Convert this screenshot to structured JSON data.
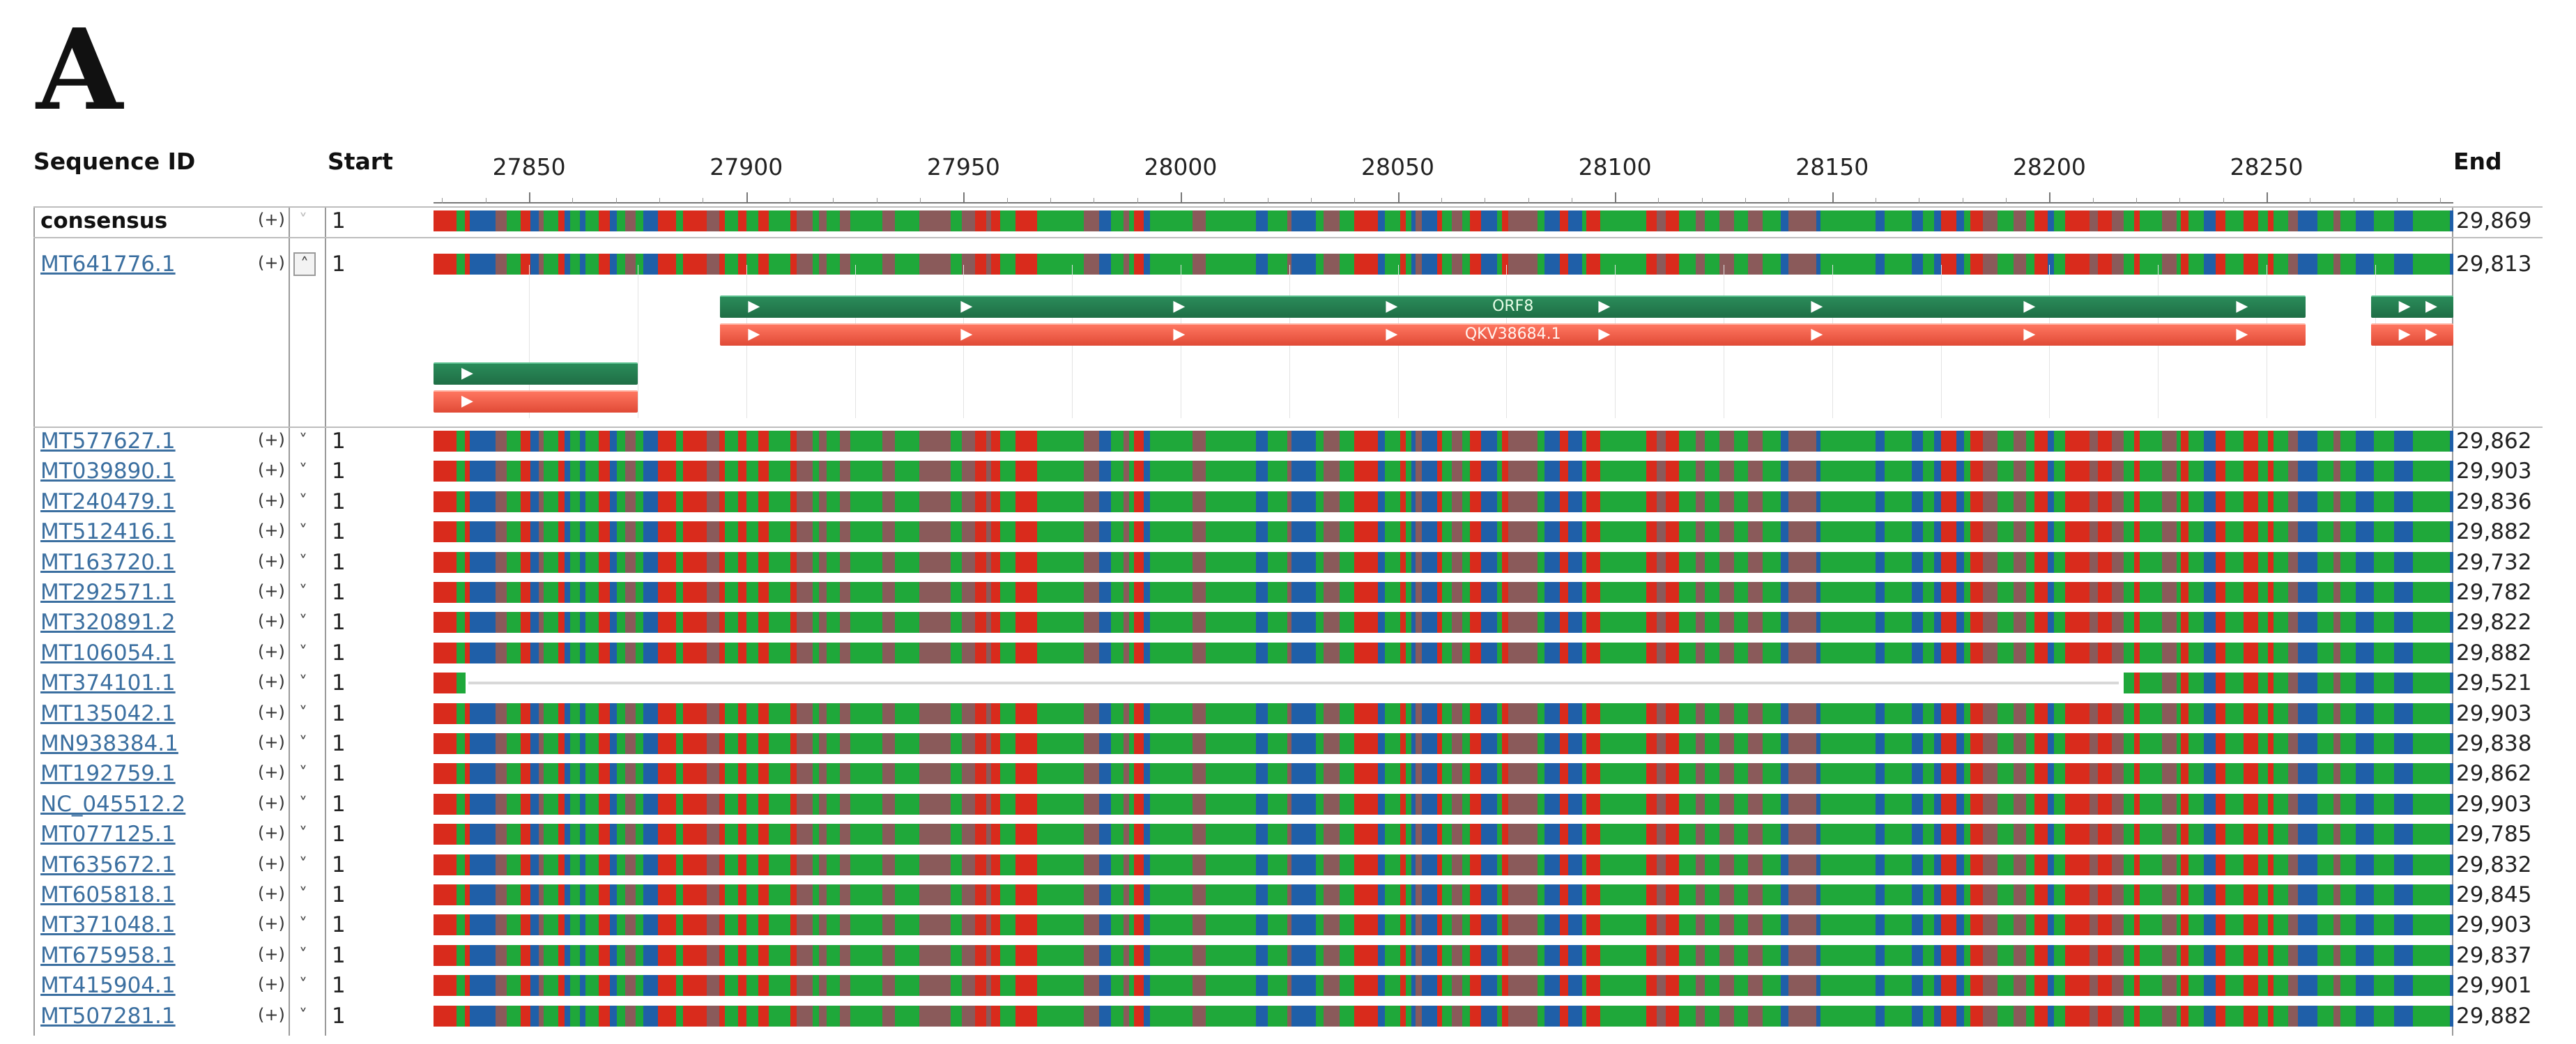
{
  "panel_label": "A",
  "headers": {
    "sequence_id": "Sequence ID",
    "start": "Start",
    "end": "End"
  },
  "ruler": {
    "tick_labels": [
      "27850",
      "27900",
      "27950",
      "28000",
      "28050",
      "28100",
      "28150",
      "28200",
      "28250"
    ],
    "range": [
      27828,
      28293
    ]
  },
  "colors": {
    "A": "#d92b1c",
    "G": "#1fa83a",
    "C": "#1f5fa8",
    "T": "#8a5a5a",
    "feature_green": "#1f6e45",
    "feature_red": "#e04a36",
    "link": "#3b6fa0"
  },
  "consensus": {
    "id": "consensus",
    "strand": "(+)",
    "start": "1",
    "end": "29,869"
  },
  "expanded": {
    "id": "MT641776.1",
    "strand": "(+)",
    "start": "1",
    "end": "29,813",
    "features": [
      {
        "name": "ORF8",
        "type": "gene",
        "color": "green",
        "from": 27894,
        "to": 28259
      },
      {
        "name": "QKV38684.1",
        "type": "CDS",
        "color": "red",
        "from": 27894,
        "to": 28259
      },
      {
        "name": "",
        "type": "gene",
        "color": "green",
        "from": 28274,
        "to": 28293
      },
      {
        "name": "",
        "type": "CDS",
        "color": "red",
        "from": 28274,
        "to": 28293
      },
      {
        "name": "",
        "type": "gene",
        "color": "green",
        "from": 27828,
        "to": 27875
      },
      {
        "name": "",
        "type": "CDS",
        "color": "red",
        "from": 27828,
        "to": 27875
      }
    ]
  },
  "sequences": [
    {
      "id": "MT577627.1",
      "strand": "(+)",
      "start": "1",
      "end": "29,862"
    },
    {
      "id": "MT039890.1",
      "strand": "(+)",
      "start": "1",
      "end": "29,903"
    },
    {
      "id": "MT240479.1",
      "strand": "(+)",
      "start": "1",
      "end": "29,836"
    },
    {
      "id": "MT512416.1",
      "strand": "(+)",
      "start": "1",
      "end": "29,882"
    },
    {
      "id": "MT163720.1",
      "strand": "(+)",
      "start": "1",
      "end": "29,732"
    },
    {
      "id": "MT292571.1",
      "strand": "(+)",
      "start": "1",
      "end": "29,782"
    },
    {
      "id": "MT320891.2",
      "strand": "(+)",
      "start": "1",
      "end": "29,822"
    },
    {
      "id": "MT106054.1",
      "strand": "(+)",
      "start": "1",
      "end": "29,882"
    },
    {
      "id": "MT374101.1",
      "strand": "(+)",
      "start": "1",
      "end": "29,521",
      "gap": [
        27836,
        28216
      ]
    },
    {
      "id": "MT135042.1",
      "strand": "(+)",
      "start": "1",
      "end": "29,903"
    },
    {
      "id": "MN938384.1",
      "strand": "(+)",
      "start": "1",
      "end": "29,838"
    },
    {
      "id": "MT192759.1",
      "strand": "(+)",
      "start": "1",
      "end": "29,862"
    },
    {
      "id": "NC_045512.2",
      "strand": "(+)",
      "start": "1",
      "end": "29,903"
    },
    {
      "id": "MT077125.1",
      "strand": "(+)",
      "start": "1",
      "end": "29,785"
    },
    {
      "id": "MT635672.1",
      "strand": "(+)",
      "start": "1",
      "end": "29,832"
    },
    {
      "id": "MT605818.1",
      "strand": "(+)",
      "start": "1",
      "end": "29,845"
    },
    {
      "id": "MT371048.1",
      "strand": "(+)",
      "start": "1",
      "end": "29,903"
    },
    {
      "id": "MT675958.1",
      "strand": "(+)",
      "start": "1",
      "end": "29,837"
    },
    {
      "id": "MT415904.1",
      "strand": "(+)",
      "start": "1",
      "end": "29,901"
    },
    {
      "id": "MT507281.1",
      "strand": "(+)",
      "start": "1",
      "end": "29,882"
    }
  ],
  "icons": {
    "expand": "double-chevron-down-icon",
    "collapse": "double-chevron-up-icon"
  }
}
